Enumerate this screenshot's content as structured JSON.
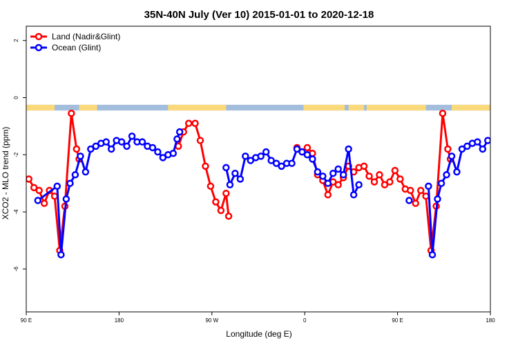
{
  "chart_data": {
    "type": "line",
    "title": "35N-40N July (Ver 10)   2015-01-01 to 2020-12-18",
    "xlabel": "Longitude (deg E)",
    "ylabel": "XCO2 - MLO trend (ppm)",
    "x_axis_start_deg": 90,
    "xlim": [
      0,
      360
    ],
    "ylim": [
      -7.5,
      2.5
    ],
    "x_ticks": [
      {
        "pos": 0,
        "label": "90 E"
      },
      {
        "pos": 72,
        "label": "180"
      },
      {
        "pos": 144,
        "label": "90 W"
      },
      {
        "pos": 216,
        "label": "0"
      },
      {
        "pos": 288,
        "label": "90 E"
      },
      {
        "pos": 360,
        "label": "180"
      }
    ],
    "y_ticks": [
      2,
      0,
      -2,
      -4,
      -6
    ],
    "grid": false,
    "legend": {
      "position": "top-left"
    },
    "landmask": {
      "y_top": -0.25,
      "y_bottom": -0.45,
      "land_color": "#fad97a",
      "ocean_color": "#a3bddd",
      "land_segments": [
        [
          0,
          22
        ],
        [
          41,
          55
        ],
        [
          110,
          155
        ],
        [
          215,
          247
        ],
        [
          250,
          262
        ],
        [
          264,
          310
        ],
        [
          330,
          360
        ]
      ]
    },
    "series": [
      {
        "name": "Land (Nadir&Glint)",
        "color": "#ff0000",
        "segments": [
          [
            [
              2,
              -2.85
            ],
            [
              6,
              -3.15
            ],
            [
              10,
              -3.25
            ],
            [
              14,
              -3.7
            ],
            [
              18,
              -3.25
            ],
            [
              22,
              -3.45
            ],
            [
              26,
              -5.35
            ],
            [
              30,
              -3.8
            ],
            [
              35,
              -0.55
            ],
            [
              39,
              -1.8
            ],
            [
              41,
              -2.15
            ]
          ],
          [
            [
              118,
              -1.7
            ],
            [
              122,
              -1.2
            ],
            [
              126,
              -0.9
            ],
            [
              131,
              -0.9
            ],
            [
              135,
              -1.5
            ],
            [
              139,
              -2.4
            ],
            [
              143,
              -3.1
            ],
            [
              147,
              -3.65
            ],
            [
              151,
              -3.95
            ],
            [
              155,
              -3.35
            ],
            [
              157,
              -4.15
            ]
          ],
          [
            [
              210,
              -1.75
            ],
            [
              214,
              -1.9
            ],
            [
              218,
              -1.75
            ],
            [
              222,
              -1.95
            ],
            [
              226,
              -2.7
            ],
            [
              230,
              -2.9
            ],
            [
              234,
              -3.4
            ],
            [
              238,
              -2.95
            ],
            [
              242,
              -3.05
            ],
            [
              246,
              -2.8
            ],
            [
              250,
              -2.4
            ],
            [
              254,
              -2.6
            ],
            [
              258,
              -2.45
            ],
            [
              262,
              -2.4
            ],
            [
              266,
              -2.75
            ],
            [
              270,
              -2.95
            ],
            [
              274,
              -2.7
            ],
            [
              278,
              -3.05
            ],
            [
              282,
              -2.95
            ],
            [
              286,
              -2.55
            ],
            [
              290,
              -2.85
            ],
            [
              294,
              -3.2
            ],
            [
              298,
              -3.25
            ],
            [
              302,
              -3.7
            ],
            [
              306,
              -3.25
            ],
            [
              310,
              -3.45
            ],
            [
              314,
              -5.35
            ],
            [
              318,
              -3.8
            ],
            [
              323,
              -0.55
            ],
            [
              327,
              -1.8
            ],
            [
              329,
              -2.15
            ]
          ]
        ]
      },
      {
        "name": "Ocean (Glint)",
        "color": "#0000ff",
        "segments": [
          [
            [
              9,
              -3.6
            ],
            [
              24,
              -3.1
            ],
            [
              27,
              -5.5
            ],
            [
              31,
              -3.55
            ],
            [
              34,
              -3.0
            ],
            [
              38,
              -2.7
            ],
            [
              42,
              -2.05
            ],
            [
              46,
              -2.6
            ],
            [
              50,
              -1.8
            ],
            [
              54,
              -1.7
            ],
            [
              58,
              -1.6
            ],
            [
              62,
              -1.55
            ],
            [
              66,
              -1.8
            ],
            [
              70,
              -1.5
            ],
            [
              74,
              -1.55
            ],
            [
              78,
              -1.7
            ],
            [
              82,
              -1.35
            ],
            [
              86,
              -1.55
            ],
            [
              90,
              -1.55
            ],
            [
              94,
              -1.7
            ],
            [
              98,
              -1.75
            ],
            [
              102,
              -1.9
            ],
            [
              106,
              -2.1
            ],
            [
              110,
              -2.0
            ],
            [
              114,
              -1.95
            ],
            [
              117,
              -1.45
            ],
            [
              119,
              -1.2
            ]
          ],
          [
            [
              155,
              -2.45
            ],
            [
              158,
              -3.05
            ],
            [
              162,
              -2.65
            ],
            [
              166,
              -2.85
            ],
            [
              170,
              -2.05
            ],
            [
              174,
              -2.2
            ],
            [
              178,
              -2.1
            ],
            [
              182,
              -2.05
            ],
            [
              186,
              -1.9
            ],
            [
              190,
              -2.2
            ],
            [
              194,
              -2.3
            ],
            [
              198,
              -2.4
            ],
            [
              202,
              -2.3
            ],
            [
              206,
              -2.3
            ],
            [
              210,
              -1.8
            ],
            [
              214,
              -1.9
            ],
            [
              218,
              -2.0
            ],
            [
              222,
              -2.15
            ],
            [
              226,
              -2.6
            ],
            [
              230,
              -2.75
            ],
            [
              234,
              -3.0
            ],
            [
              238,
              -2.65
            ],
            [
              242,
              -2.5
            ],
            [
              246,
              -2.7
            ],
            [
              250,
              -1.8
            ],
            [
              254,
              -3.4
            ],
            [
              258,
              -3.05
            ]
          ],
          [
            [
              297,
              -3.6
            ]
          ],
          [
            [
              312,
              -3.1
            ],
            [
              315,
              -5.5
            ],
            [
              319,
              -3.55
            ],
            [
              322,
              -3.0
            ],
            [
              326,
              -2.7
            ],
            [
              330,
              -2.05
            ],
            [
              334,
              -2.6
            ],
            [
              338,
              -1.8
            ],
            [
              342,
              -1.7
            ],
            [
              346,
              -1.6
            ],
            [
              350,
              -1.55
            ],
            [
              354,
              -1.8
            ],
            [
              358,
              -1.5
            ]
          ]
        ]
      }
    ]
  }
}
